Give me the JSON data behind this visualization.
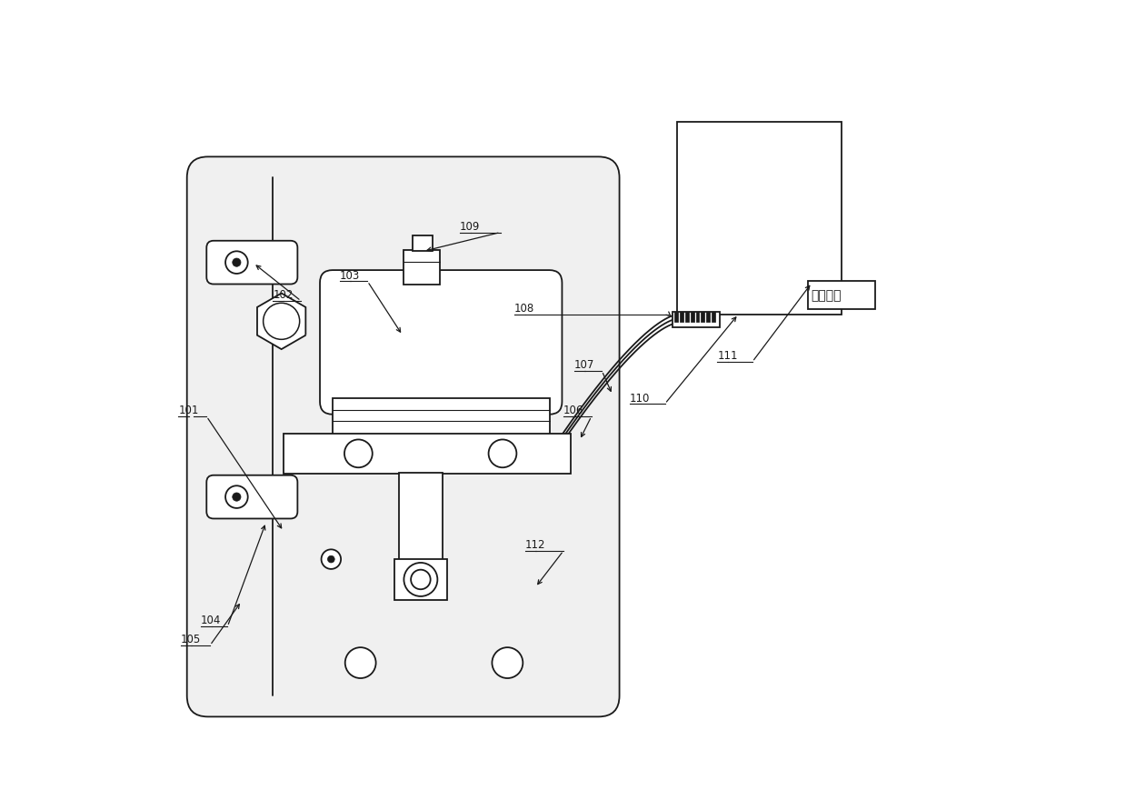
{
  "bg_color": "#ffffff",
  "lc": "#1a1a1a",
  "lw": 1.3,
  "comm_text": "通讯端口",
  "fig_w": 12.39,
  "fig_h": 8.91
}
